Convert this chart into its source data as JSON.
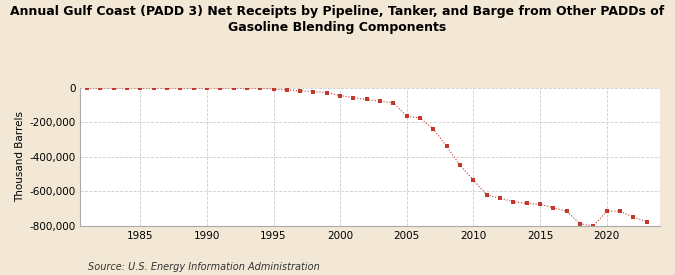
{
  "title": "Annual Gulf Coast (PADD 3) Net Receipts by Pipeline, Tanker, and Barge from Other PADDs of\nGasoline Blending Components",
  "ylabel": "Thousand Barrels",
  "source": "Source: U.S. Energy Information Administration",
  "background_color": "#f2e8d5",
  "plot_background_color": "#ffffff",
  "marker_color": "#c0392b",
  "years": [
    1981,
    1982,
    1983,
    1984,
    1985,
    1986,
    1987,
    1988,
    1989,
    1990,
    1991,
    1992,
    1993,
    1994,
    1995,
    1996,
    1997,
    1998,
    1999,
    2000,
    2001,
    2002,
    2003,
    2004,
    2005,
    2006,
    2007,
    2008,
    2009,
    2010,
    2011,
    2012,
    2013,
    2014,
    2015,
    2016,
    2017,
    2018,
    2019,
    2020,
    2021,
    2022,
    2023
  ],
  "values": [
    -2000,
    -2000,
    -2000,
    -2000,
    -2000,
    -2000,
    -2000,
    -2000,
    -2000,
    -2000,
    -2000,
    -2000,
    -2000,
    -2000,
    -8000,
    -12000,
    -18000,
    -22000,
    -28000,
    -45000,
    -58000,
    -68000,
    -78000,
    -88000,
    -165000,
    -175000,
    -240000,
    -340000,
    -450000,
    -535000,
    -620000,
    -640000,
    -660000,
    -670000,
    -675000,
    -695000,
    -715000,
    -788000,
    -800000,
    -715000,
    -715000,
    -750000,
    -775000
  ],
  "ylim": [
    -800000,
    0
  ],
  "yticks": [
    0,
    -200000,
    -400000,
    -600000,
    -800000
  ],
  "xlim": [
    1980.5,
    2024
  ],
  "xticks": [
    1985,
    1990,
    1995,
    2000,
    2005,
    2010,
    2015,
    2020
  ]
}
